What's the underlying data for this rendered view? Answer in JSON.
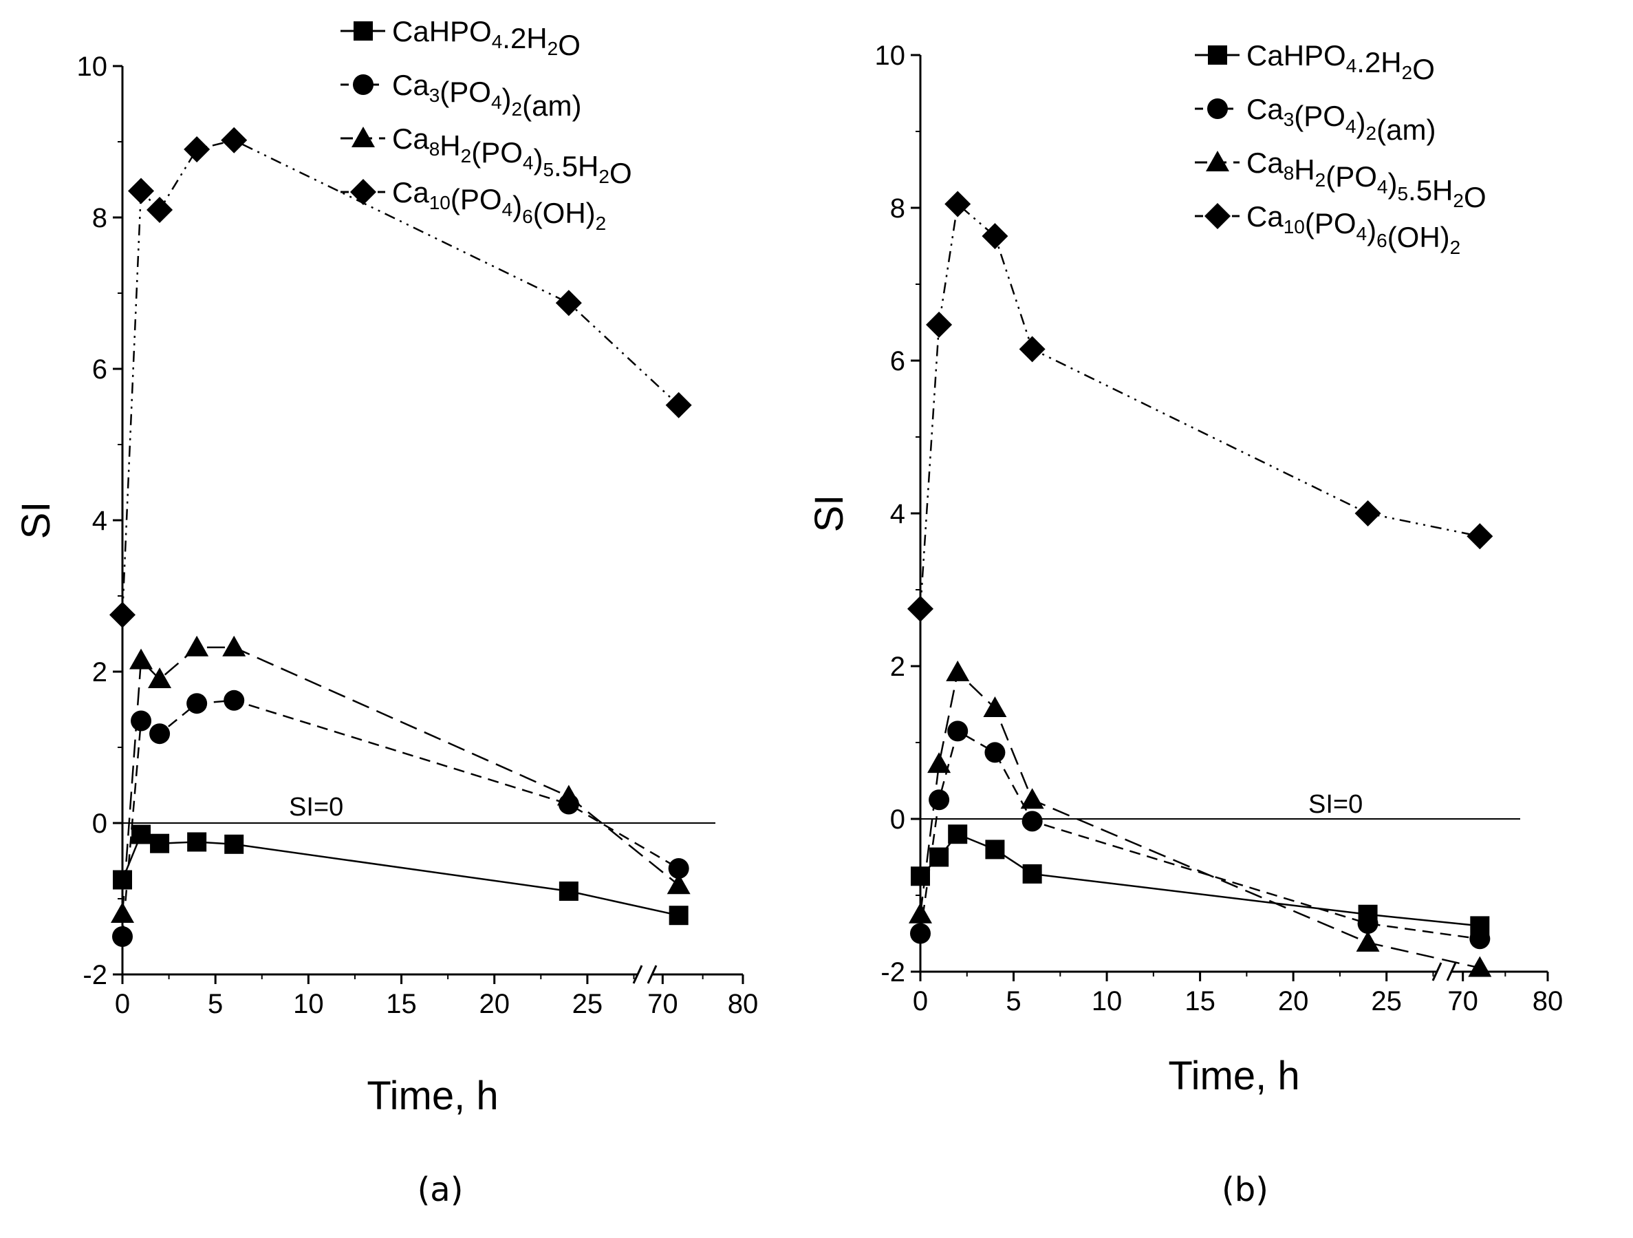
{
  "figure": {
    "captions": [
      "(a)",
      "(b)"
    ]
  },
  "legend": {
    "entries": [
      {
        "id": "dcpd",
        "parts": [
          [
            "CaHPO",
            "n"
          ],
          [
            "4",
            "sub"
          ],
          [
            ".2H",
            "n"
          ],
          [
            "2",
            "sub"
          ],
          [
            "O",
            "n"
          ]
        ]
      },
      {
        "id": "acp",
        "parts": [
          [
            "Ca",
            "n"
          ],
          [
            "3",
            "sub"
          ],
          [
            "(PO",
            "n"
          ],
          [
            "4",
            "sub"
          ],
          [
            ")",
            "n"
          ],
          [
            "2",
            "sub"
          ],
          [
            "(am)",
            "n"
          ]
        ]
      },
      {
        "id": "ocp",
        "parts": [
          [
            "Ca",
            "n"
          ],
          [
            "8",
            "sub"
          ],
          [
            "H",
            "n"
          ],
          [
            "2",
            "sub"
          ],
          [
            "(PO",
            "n"
          ],
          [
            "4",
            "sub"
          ],
          [
            ")",
            "n"
          ],
          [
            "5",
            "sub"
          ],
          [
            ".5H",
            "n"
          ],
          [
            "2",
            "sub"
          ],
          [
            "O",
            "n"
          ]
        ]
      },
      {
        "id": "hap",
        "parts": [
          [
            "Ca",
            "n"
          ],
          [
            "10",
            "sub"
          ],
          [
            "(PO",
            "n"
          ],
          [
            "4",
            "sub"
          ],
          [
            ")",
            "n"
          ],
          [
            "6",
            "sub"
          ],
          [
            "(OH)",
            "n"
          ],
          [
            "2",
            "sub"
          ]
        ]
      }
    ]
  },
  "chart_data": [
    {
      "type": "line",
      "panel": "a",
      "title": "",
      "xlabel": "Time, h",
      "ylabel": "SI",
      "ylim": [
        -2,
        10
      ],
      "yticks": [
        -2,
        0,
        2,
        4,
        6,
        8,
        10
      ],
      "xlim_main": [
        0,
        28
      ],
      "xticks_main": [
        0,
        5,
        10,
        15,
        20,
        25
      ],
      "xlim_broken": [
        68,
        80
      ],
      "xticks_broken": [
        70,
        80
      ],
      "reference_line": {
        "y": 0,
        "label": "SI=0"
      },
      "series": [
        {
          "name": "CaHPO4.2H2O",
          "marker": "square",
          "dash": "solid",
          "x": [
            0,
            1,
            2,
            4,
            6,
            24,
            72
          ],
          "y": [
            -0.75,
            -0.15,
            -0.27,
            -0.25,
            -0.28,
            -0.9,
            -1.22
          ]
        },
        {
          "name": "Ca3(PO4)2(am)",
          "marker": "circle",
          "dash": "dashed",
          "x": [
            0,
            1,
            2,
            4,
            6,
            24,
            72
          ],
          "y": [
            -1.5,
            1.35,
            1.18,
            1.58,
            1.62,
            0.25,
            -0.6
          ]
        },
        {
          "name": "Ca8H2(PO4)5.5H2O",
          "marker": "triangle",
          "dash": "longdash",
          "x": [
            0,
            1,
            2,
            4,
            6,
            24,
            72
          ],
          "y": [
            -1.2,
            2.15,
            1.9,
            2.32,
            2.32,
            0.35,
            -0.82
          ]
        },
        {
          "name": "Ca10(PO4)6(OH)2",
          "marker": "diamond",
          "dash": "dashdotdot",
          "x": [
            0,
            1,
            2,
            4,
            6,
            24,
            72
          ],
          "y": [
            2.75,
            8.35,
            8.1,
            8.9,
            9.02,
            6.87,
            5.52
          ]
        }
      ]
    },
    {
      "type": "line",
      "panel": "b",
      "title": "",
      "xlabel": "Time, h",
      "ylabel": "SI",
      "ylim": [
        -2,
        10
      ],
      "yticks": [
        -2,
        0,
        2,
        4,
        6,
        8,
        10
      ],
      "xlim_main": [
        0,
        28
      ],
      "xticks_main": [
        0,
        5,
        10,
        15,
        20,
        25
      ],
      "xlim_broken": [
        68,
        80
      ],
      "xticks_broken": [
        70,
        80
      ],
      "reference_line": {
        "y": 0,
        "label": "SI=0"
      },
      "series": [
        {
          "name": "CaHPO4.2H2O",
          "marker": "square",
          "dash": "solid",
          "x": [
            0,
            1,
            2,
            4,
            6,
            24,
            72
          ],
          "y": [
            -0.75,
            -0.5,
            -0.2,
            -0.4,
            -0.72,
            -1.25,
            -1.4
          ]
        },
        {
          "name": "Ca3(PO4)2(am)",
          "marker": "circle",
          "dash": "dashed",
          "x": [
            0,
            1,
            2,
            4,
            6,
            24,
            72
          ],
          "y": [
            -1.5,
            0.25,
            1.15,
            0.87,
            -0.03,
            -1.37,
            -1.57
          ]
        },
        {
          "name": "Ca8H2(PO4)5.5H2O",
          "marker": "triangle",
          "dash": "longdash",
          "x": [
            0,
            1,
            2,
            4,
            6,
            24,
            72
          ],
          "y": [
            -1.25,
            0.72,
            1.92,
            1.45,
            0.25,
            -1.62,
            -1.95
          ]
        },
        {
          "name": "Ca10(PO4)6(OH)2",
          "marker": "diamond",
          "dash": "dashdotdot",
          "x": [
            0,
            1,
            2,
            4,
            6,
            24,
            72
          ],
          "y": [
            2.75,
            6.47,
            8.05,
            7.63,
            6.15,
            4.0,
            3.7
          ]
        }
      ]
    }
  ]
}
